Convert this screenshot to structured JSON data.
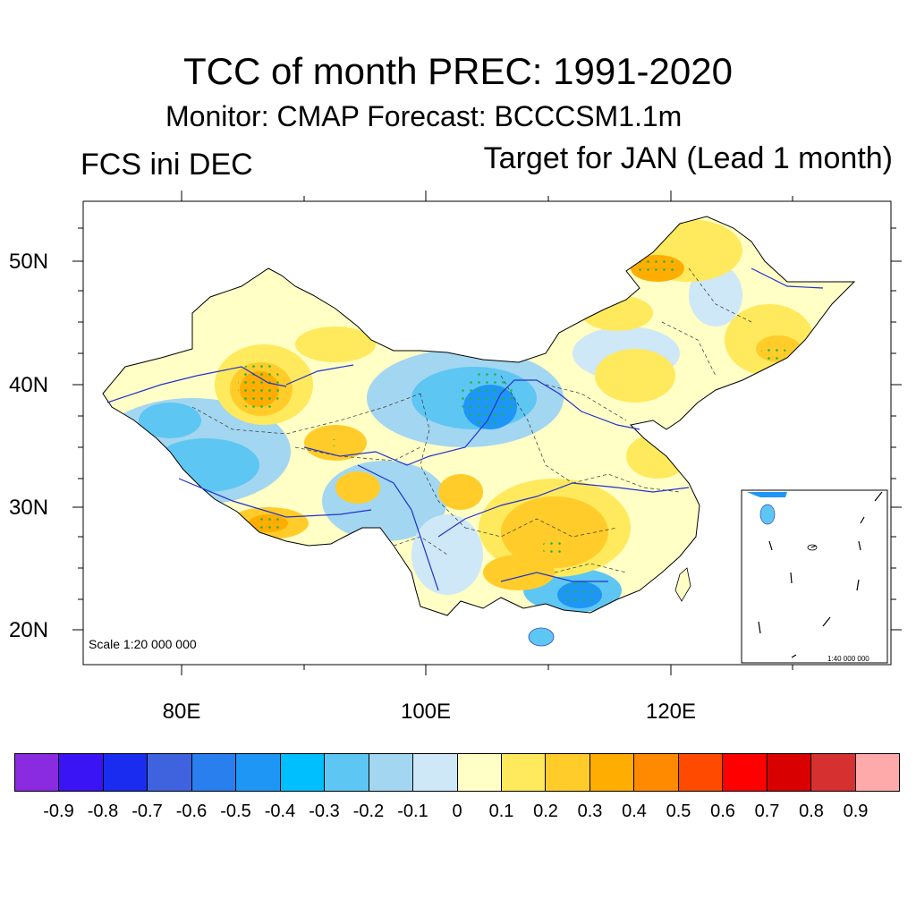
{
  "title": "TCC of month PREC: 1991-2020",
  "subtitle": "Monitor: CMAP   Forecast: BCCCSM1.1m",
  "left_label": "FCS ini DEC",
  "right_label": "Target for JAN (Lead 1 month)",
  "scale_main": "Scale 1:20 000 000",
  "scale_inset": "1:40 000 000",
  "lat_labels": [
    "50N",
    "40N",
    "30N",
    "20N"
  ],
  "lon_labels": [
    "80E",
    "100E",
    "120E"
  ],
  "colorbar": {
    "colors": [
      "#8a2be2",
      "#3a14f5",
      "#1a2cf0",
      "#3f63de",
      "#2a7fee",
      "#1e96f5",
      "#00bfff",
      "#5ec6f2",
      "#a3d6f0",
      "#cfe8f7",
      "#ffffc6",
      "#ffe95c",
      "#ffcc2a",
      "#ffad00",
      "#ff8a00",
      "#ff4a00",
      "#ff0000",
      "#d80000",
      "#d63030",
      "#ffaaaa"
    ],
    "labels": [
      "-0.9",
      "-0.8",
      "-0.7",
      "-0.6",
      "-0.5",
      "-0.4",
      "-0.3",
      "-0.2",
      "-0.1",
      "0",
      "0.1",
      "0.2",
      "0.3",
      "0.4",
      "0.5",
      "0.6",
      "0.7",
      "0.8",
      "0.9"
    ]
  }
}
